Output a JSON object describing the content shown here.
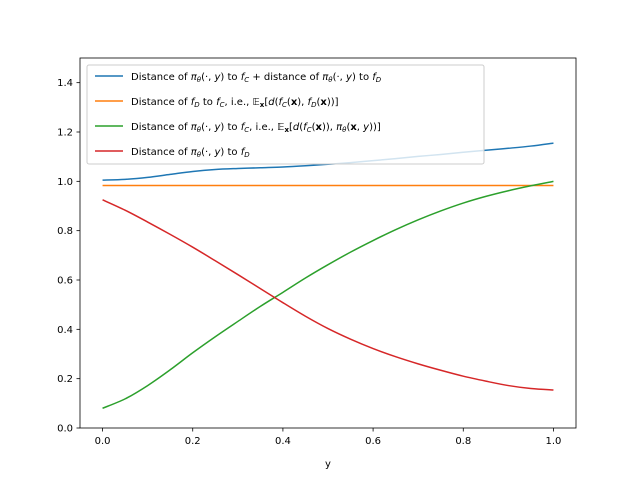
{
  "chart_data": {
    "type": "line",
    "xlabel": "y",
    "ylabel": "",
    "title": "",
    "xlim": [
      -0.05,
      1.05
    ],
    "ylim": [
      0.0,
      1.5
    ],
    "xticks": [
      0.0,
      0.2,
      0.4,
      0.6,
      0.8,
      1.0
    ],
    "yticks": [
      0.0,
      0.2,
      0.4,
      0.6,
      0.8,
      1.0,
      1.2,
      1.4
    ],
    "xtick_labels": [
      "0.0",
      "0.2",
      "0.4",
      "0.6",
      "0.8",
      "1.0"
    ],
    "ytick_labels": [
      "0.0",
      "0.2",
      "0.4",
      "0.6",
      "0.8",
      "1.0",
      "1.2",
      "1.4"
    ],
    "grid": false,
    "legend_position": "upper-left",
    "x": [
      0.0,
      0.05,
      0.1,
      0.15,
      0.2,
      0.25,
      0.3,
      0.35,
      0.4,
      0.45,
      0.5,
      0.55,
      0.6,
      0.65,
      0.7,
      0.75,
      0.8,
      0.85,
      0.9,
      0.95,
      1.0
    ],
    "series": [
      {
        "name": "Distance of π_θ(·, y) to f_C + distance of π_θ(·, y) to f_D",
        "color": "#1f77b4",
        "values": [
          1.005,
          1.008,
          1.016,
          1.028,
          1.04,
          1.048,
          1.052,
          1.055,
          1.058,
          1.063,
          1.069,
          1.076,
          1.084,
          1.092,
          1.101,
          1.109,
          1.118,
          1.126,
          1.134,
          1.143,
          1.155
        ]
      },
      {
        "name": "Distance of f_D to f_C, i.e., E_x[d(f_C(x), f_D(x))]",
        "color": "#ff7f0e",
        "values": [
          0.983,
          0.983,
          0.983,
          0.983,
          0.983,
          0.983,
          0.983,
          0.983,
          0.983,
          0.983,
          0.983,
          0.983,
          0.983,
          0.983,
          0.983,
          0.983,
          0.983,
          0.983,
          0.983,
          0.983,
          0.983
        ]
      },
      {
        "name": "Distance of π_θ(·, y) to f_C, i.e., E_x[d(f_C(x)), π_θ(x, y))]",
        "color": "#2ca02c",
        "values": [
          0.08,
          0.118,
          0.172,
          0.236,
          0.305,
          0.37,
          0.432,
          0.493,
          0.55,
          0.608,
          0.662,
          0.713,
          0.76,
          0.804,
          0.844,
          0.88,
          0.912,
          0.939,
          0.962,
          0.982,
          1.0
        ]
      },
      {
        "name": "Distance of π_θ(·, y) to f_D",
        "color": "#d62728",
        "values": [
          0.925,
          0.883,
          0.835,
          0.785,
          0.733,
          0.678,
          0.622,
          0.565,
          0.508,
          0.453,
          0.403,
          0.36,
          0.322,
          0.289,
          0.26,
          0.234,
          0.21,
          0.19,
          0.172,
          0.16,
          0.154
        ]
      }
    ]
  }
}
